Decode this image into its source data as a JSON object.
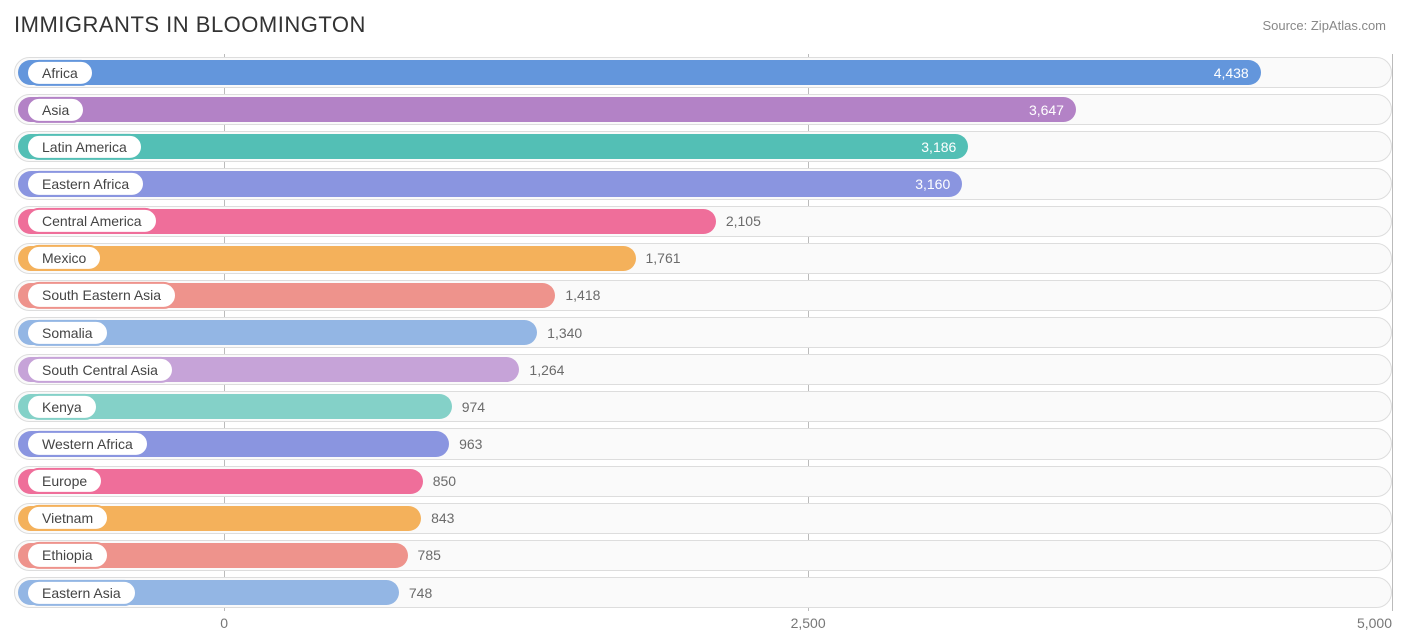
{
  "title": "IMMIGRANTS IN BLOOMINGTON",
  "source": "Source: ZipAtlas.com",
  "chart": {
    "type": "bar",
    "xmin": -900,
    "xmax": 5000,
    "ticks": [
      {
        "value": 0,
        "label": "0"
      },
      {
        "value": 2500,
        "label": "2,500"
      },
      {
        "value": 5000,
        "label": "5,000"
      }
    ],
    "grid_color": "#bbbbbb",
    "track_border": "#dddddd",
    "track_bg": "#fafafa",
    "label_inside_threshold": 3100,
    "rows": [
      {
        "label": "Africa",
        "value": 4438,
        "display": "4,438",
        "color": "#6396dc"
      },
      {
        "label": "Asia",
        "value": 3647,
        "display": "3,647",
        "color": "#b382c6"
      },
      {
        "label": "Latin America",
        "value": 3186,
        "display": "3,186",
        "color": "#53bfb5"
      },
      {
        "label": "Eastern Africa",
        "value": 3160,
        "display": "3,160",
        "color": "#8a95e0"
      },
      {
        "label": "Central America",
        "value": 2105,
        "display": "2,105",
        "color": "#ef6e9a"
      },
      {
        "label": "Mexico",
        "value": 1761,
        "display": "1,761",
        "color": "#f4b15b"
      },
      {
        "label": "South Eastern Asia",
        "value": 1418,
        "display": "1,418",
        "color": "#ee938c"
      },
      {
        "label": "Somalia",
        "value": 1340,
        "display": "1,340",
        "color": "#93b6e4"
      },
      {
        "label": "South Central Asia",
        "value": 1264,
        "display": "1,264",
        "color": "#c6a3d8"
      },
      {
        "label": "Kenya",
        "value": 974,
        "display": "974",
        "color": "#84d1c8"
      },
      {
        "label": "Western Africa",
        "value": 963,
        "display": "963",
        "color": "#8a95e0"
      },
      {
        "label": "Europe",
        "value": 850,
        "display": "850",
        "color": "#ef6e9a"
      },
      {
        "label": "Vietnam",
        "value": 843,
        "display": "843",
        "color": "#f4b15b"
      },
      {
        "label": "Ethiopia",
        "value": 785,
        "display": "785",
        "color": "#ee938c"
      },
      {
        "label": "Eastern Asia",
        "value": 748,
        "display": "748",
        "color": "#93b6e4"
      }
    ]
  }
}
